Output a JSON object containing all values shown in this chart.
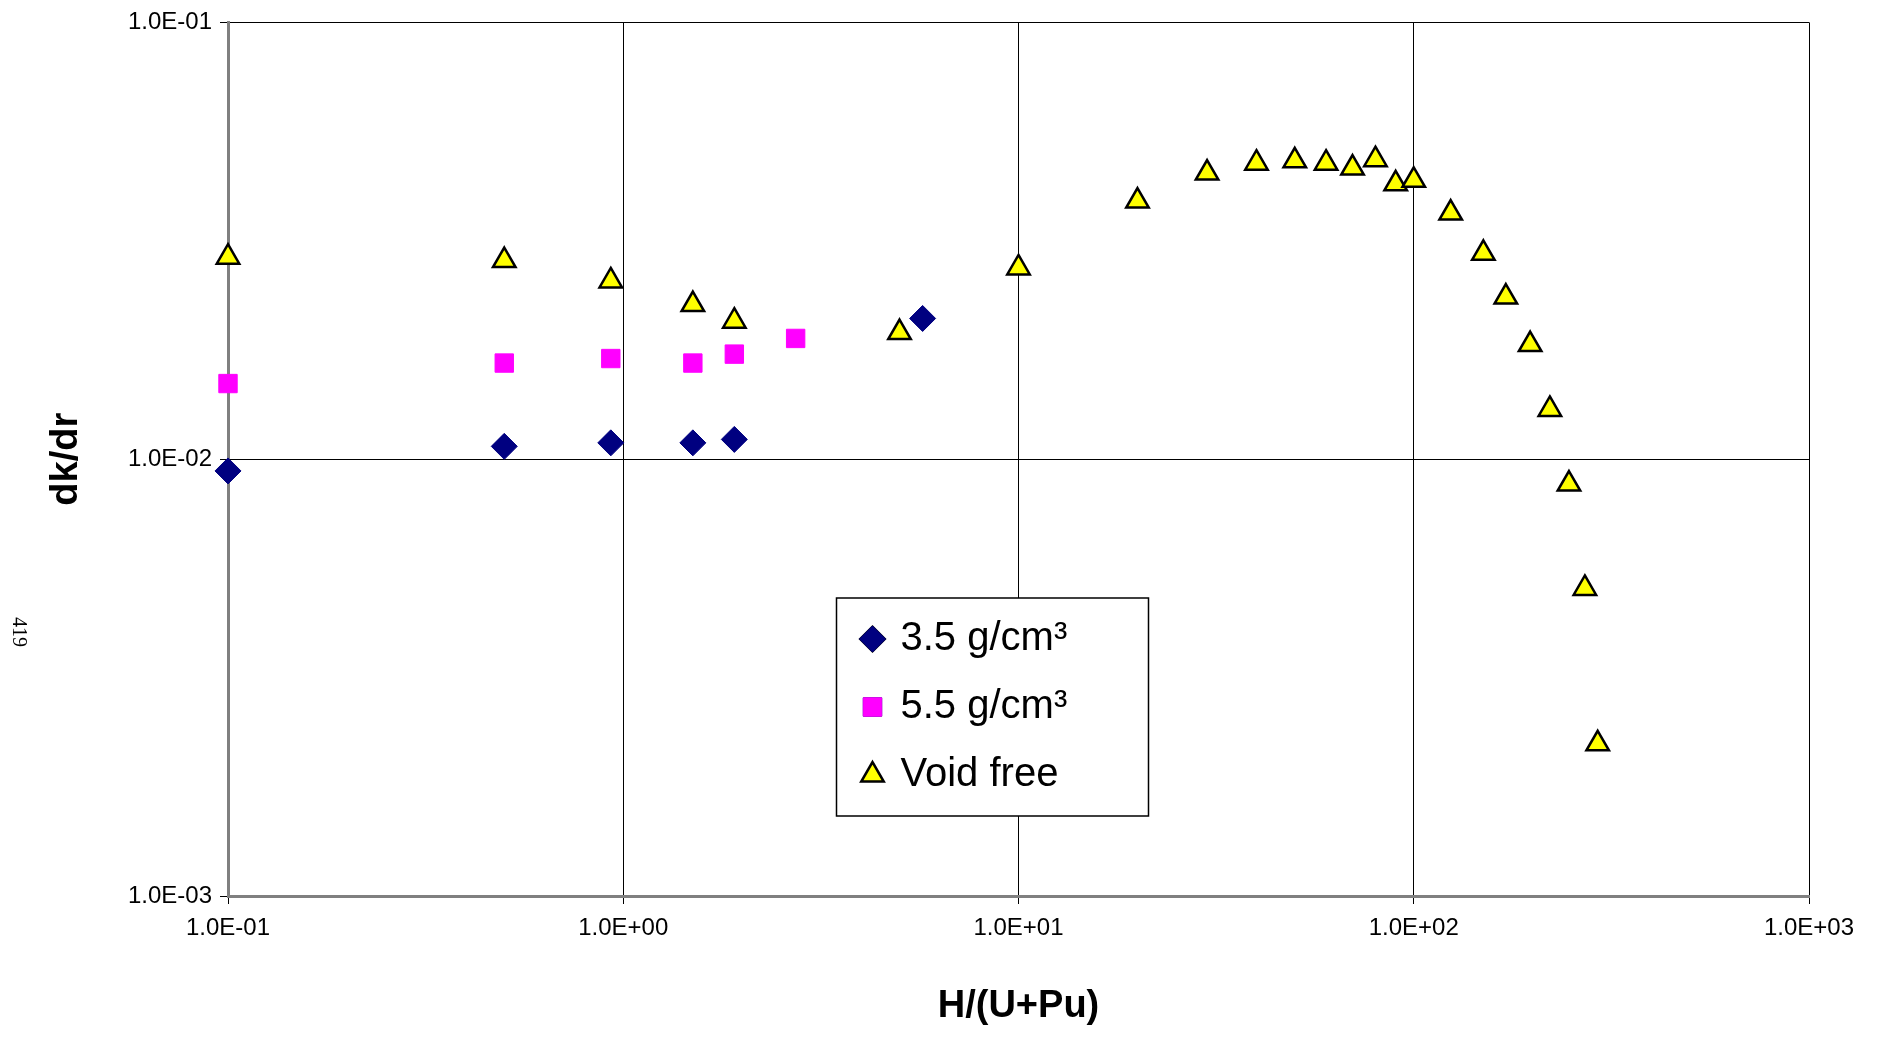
{
  "chart_data": {
    "type": "scatter",
    "xlabel": "H/(U+Pu)",
    "ylabel": "dk/dr",
    "log": "xy",
    "grid": true,
    "legend": "bottom",
    "annotations": [
      "419"
    ],
    "xlim": [
      0.1,
      1000
    ],
    "ylim": [
      0.001,
      0.1
    ],
    "xticks": [
      {
        "value": 0.1,
        "label": "1.0E-01"
      },
      {
        "value": 1,
        "label": "1.0E+00"
      },
      {
        "value": 10,
        "label": "1.0E+01"
      },
      {
        "value": 100,
        "label": "1.0E+02"
      },
      {
        "value": 1000,
        "label": "1.0E+03"
      }
    ],
    "yticks": [
      {
        "value": 0.001,
        "label": "1.0E-03"
      },
      {
        "value": 0.01,
        "label": "1.0E-02"
      },
      {
        "value": 0.1,
        "label": "1.0E-01"
      }
    ],
    "series": [
      {
        "name": "3.5 g/cm³",
        "color": "#000080",
        "marker": "diamond",
        "x": [
          0.1,
          0.5,
          0.93,
          1.5,
          1.91,
          5.72
        ],
        "values": [
          0.0094,
          0.0107,
          0.0109,
          0.0109,
          0.0111,
          0.021
        ]
      },
      {
        "name": "5.5 g/cm³",
        "color": "#ff00ff",
        "marker": "square",
        "x": [
          0.1,
          0.5,
          0.93,
          1.5,
          1.91,
          2.73
        ],
        "values": [
          0.0149,
          0.0166,
          0.017,
          0.0166,
          0.0174,
          0.0189
        ]
      },
      {
        "name": "Void free",
        "color": "#ffff00",
        "marker": "triangle",
        "x": [
          0.1,
          0.5,
          0.93,
          1.5,
          1.91,
          5,
          10,
          20,
          30,
          40,
          50,
          60,
          70,
          80,
          90,
          100,
          124,
          150,
          171,
          197,
          221,
          247,
          271,
          292
        ],
        "values": [
          0.029,
          0.0285,
          0.0256,
          0.0226,
          0.0207,
          0.0195,
          0.0274,
          0.039,
          0.0452,
          0.0476,
          0.0482,
          0.0476,
          0.0464,
          0.0485,
          0.0427,
          0.0435,
          0.0366,
          0.0296,
          0.0235,
          0.0183,
          0.013,
          0.00877,
          0.00506,
          0.00223
        ]
      }
    ]
  }
}
